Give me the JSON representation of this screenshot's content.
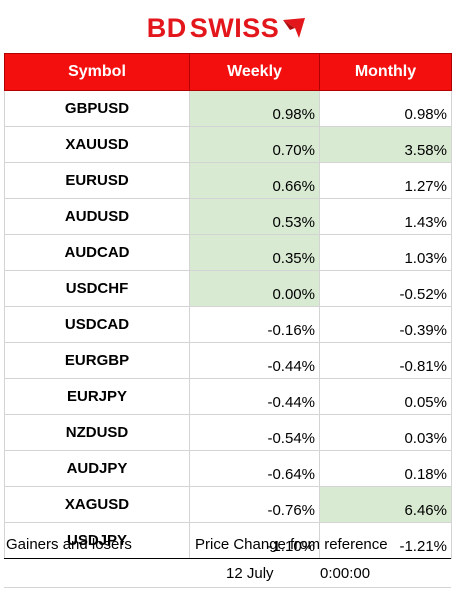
{
  "brand": {
    "name_bd": "BD",
    "name_rest": "SWISS"
  },
  "colors": {
    "header_bg": "#f40f0f",
    "highlight": "#d9ead3",
    "brand_red": "#e3171b"
  },
  "table": {
    "headers": {
      "symbol": "Symbol",
      "weekly": "Weekly",
      "monthly": "Monthly"
    },
    "rows": [
      {
        "symbol": "GBPUSD",
        "weekly": "0.98%",
        "monthly": "0.98%"
      },
      {
        "symbol": "XAUUSD",
        "weekly": "0.70%",
        "monthly": "3.58%"
      },
      {
        "symbol": "EURUSD",
        "weekly": "0.66%",
        "monthly": "1.27%"
      },
      {
        "symbol": "AUDUSD",
        "weekly": "0.53%",
        "monthly": "1.43%"
      },
      {
        "symbol": "AUDCAD",
        "weekly": "0.35%",
        "monthly": "1.03%"
      },
      {
        "symbol": "USDCHF",
        "weekly": "0.00%",
        "monthly": "-0.52%"
      },
      {
        "symbol": "USDCAD",
        "weekly": "-0.16%",
        "monthly": "-0.39%"
      },
      {
        "symbol": "EURGBP",
        "weekly": "-0.44%",
        "monthly": "-0.81%"
      },
      {
        "symbol": "EURJPY",
        "weekly": "-0.44%",
        "monthly": "0.05%"
      },
      {
        "symbol": "NZDUSD",
        "weekly": "-0.54%",
        "monthly": "0.03%"
      },
      {
        "symbol": "AUDJPY",
        "weekly": "-0.64%",
        "monthly": "0.18%"
      },
      {
        "symbol": "XAGUSD",
        "weekly": "-0.76%",
        "monthly": "6.46%"
      },
      {
        "symbol": "USDJPY",
        "weekly": "-1.10%",
        "monthly": "-1.21%"
      }
    ]
  },
  "footer": {
    "gainers_losers": "Gainers and losers",
    "price_change": "Price Change from reference",
    "date": "12 July",
    "time": "0:00:00"
  }
}
